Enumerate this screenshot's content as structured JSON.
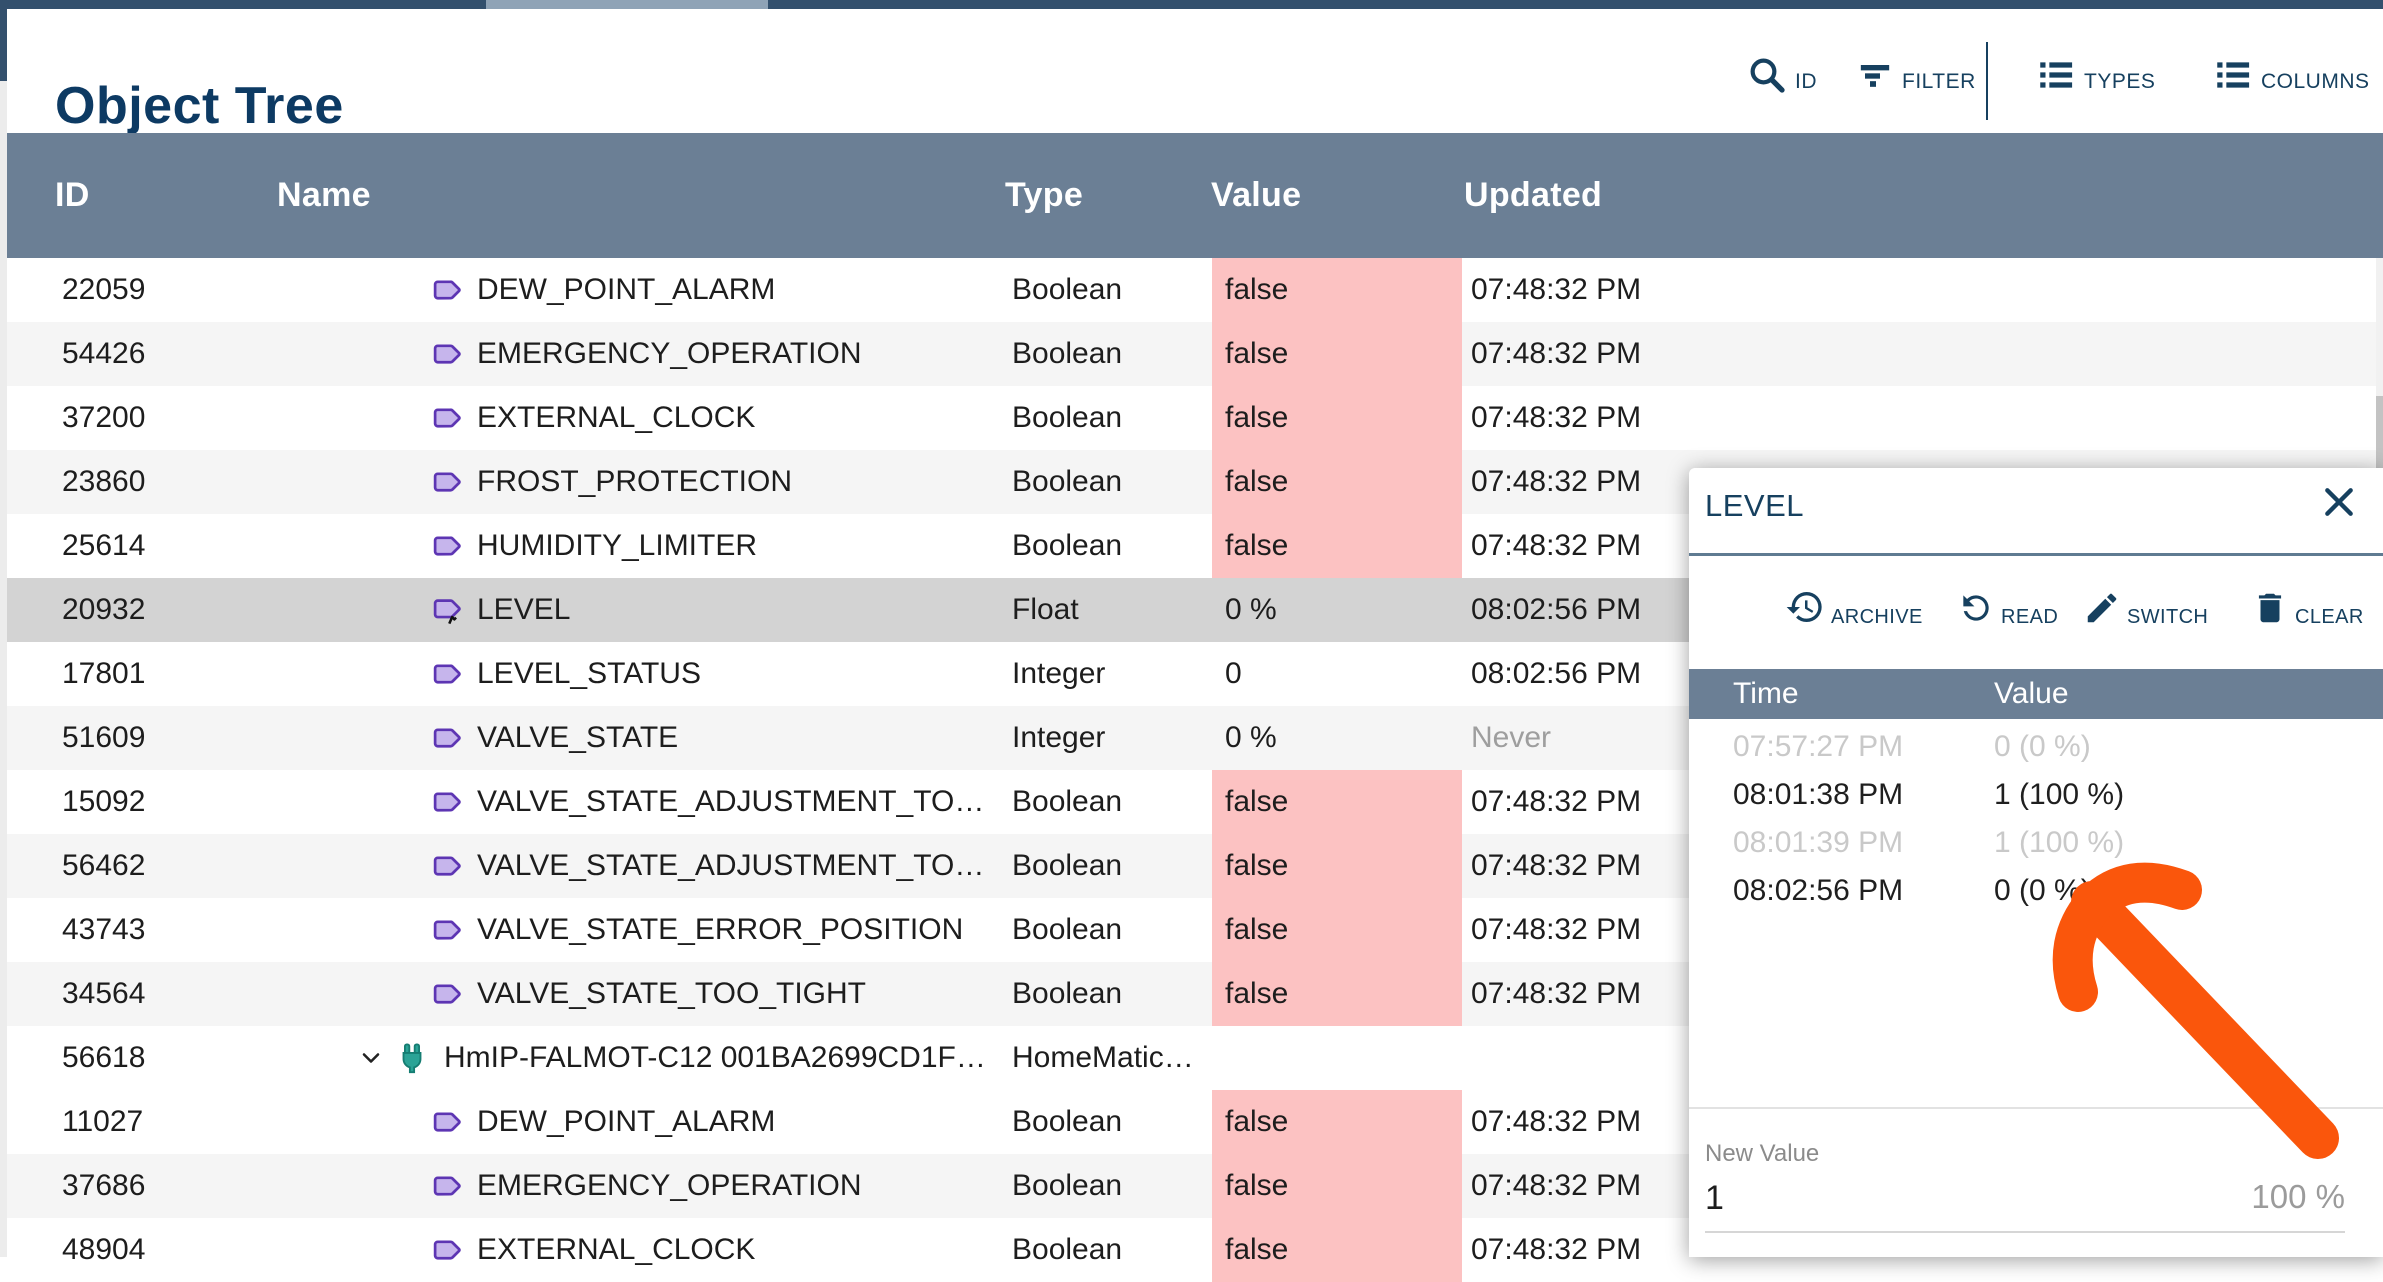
{
  "header": {
    "title": "Object Tree",
    "toolbar": [
      {
        "label": "ID",
        "icon": "search-icon"
      },
      {
        "label": "FILTER",
        "icon": "filter-icon"
      },
      {
        "label": "TYPES",
        "icon": "list-icon"
      },
      {
        "label": "COLUMNS",
        "icon": "list-icon"
      }
    ]
  },
  "table": {
    "columns": [
      "ID",
      "Name",
      "Type",
      "Value",
      "Updated"
    ],
    "rows": [
      {
        "id": "22059",
        "name": "DEW_POINT_ALARM",
        "type": "Boolean",
        "value": "false",
        "updated": "07:48:32 PM",
        "icon": "tag",
        "alarm": true,
        "shaded": false
      },
      {
        "id": "54426",
        "name": "EMERGENCY_OPERATION",
        "type": "Boolean",
        "value": "false",
        "updated": "07:48:32 PM",
        "icon": "tag",
        "alarm": true,
        "shaded": true
      },
      {
        "id": "37200",
        "name": "EXTERNAL_CLOCK",
        "type": "Boolean",
        "value": "false",
        "updated": "07:48:32 PM",
        "icon": "tag",
        "alarm": true,
        "shaded": false
      },
      {
        "id": "23860",
        "name": "FROST_PROTECTION",
        "type": "Boolean",
        "value": "false",
        "updated": "07:48:32 PM",
        "icon": "tag",
        "alarm": true,
        "shaded": true
      },
      {
        "id": "25614",
        "name": "HUMIDITY_LIMITER",
        "type": "Boolean",
        "value": "false",
        "updated": "07:48:32 PM",
        "icon": "tag",
        "alarm": true,
        "shaded": false
      },
      {
        "id": "20932",
        "name": "LEVEL",
        "type": "Float",
        "value": "0 %",
        "updated": "08:02:56 PM",
        "icon": "tag-edit",
        "alarm": false,
        "shaded": false,
        "selected": true
      },
      {
        "id": "17801",
        "name": "LEVEL_STATUS",
        "type": "Integer",
        "value": "0",
        "updated": "08:02:56 PM",
        "icon": "tag",
        "alarm": false,
        "shaded": false
      },
      {
        "id": "51609",
        "name": "VALVE_STATE",
        "type": "Integer",
        "value": "0 %",
        "updated": "Never",
        "icon": "tag",
        "alarm": false,
        "shaded": true,
        "never": true
      },
      {
        "id": "15092",
        "name": "VALVE_STATE_ADJUSTMENT_TO…",
        "type": "Boolean",
        "value": "false",
        "updated": "07:48:32 PM",
        "icon": "tag",
        "alarm": true,
        "shaded": false
      },
      {
        "id": "56462",
        "name": "VALVE_STATE_ADJUSTMENT_TO…",
        "type": "Boolean",
        "value": "false",
        "updated": "07:48:32 PM",
        "icon": "tag",
        "alarm": true,
        "shaded": true
      },
      {
        "id": "43743",
        "name": "VALVE_STATE_ERROR_POSITION",
        "type": "Boolean",
        "value": "false",
        "updated": "07:48:32 PM",
        "icon": "tag",
        "alarm": true,
        "shaded": false
      },
      {
        "id": "34564",
        "name": "VALVE_STATE_TOO_TIGHT",
        "type": "Boolean",
        "value": "false",
        "updated": "07:48:32 PM",
        "icon": "tag",
        "alarm": true,
        "shaded": true
      },
      {
        "id": "56618",
        "name": "HmIP-FALMOT-C12 001BA2699CD1F…",
        "type": "HomeMatic…",
        "value": "",
        "updated": "",
        "icon": "plug",
        "alarm": false,
        "shaded": false,
        "expandable": true
      },
      {
        "id": "11027",
        "name": "DEW_POINT_ALARM",
        "type": "Boolean",
        "value": "false",
        "updated": "07:48:32 PM",
        "icon": "tag",
        "alarm": true,
        "shaded": false
      },
      {
        "id": "37686",
        "name": "EMERGENCY_OPERATION",
        "type": "Boolean",
        "value": "false",
        "updated": "07:48:32 PM",
        "icon": "tag",
        "alarm": true,
        "shaded": true
      },
      {
        "id": "48904",
        "name": "EXTERNAL_CLOCK",
        "type": "Boolean",
        "value": "false",
        "updated": "07:48:32 PM",
        "icon": "tag",
        "alarm": true,
        "shaded": false
      }
    ]
  },
  "panel": {
    "title": "LEVEL",
    "close_icon": "close-icon",
    "actions": [
      {
        "label": "ARCHIVE",
        "icon": "history-icon"
      },
      {
        "label": "READ",
        "icon": "refresh-icon"
      },
      {
        "label": "SWITCH",
        "icon": "pencil-icon"
      },
      {
        "label": "CLEAR",
        "icon": "trash-icon"
      }
    ],
    "history": {
      "columns": [
        "Time",
        "Value"
      ],
      "rows": [
        {
          "time": "07:57:27 PM",
          "value": "0 (0 %)",
          "dimmed": true
        },
        {
          "time": "08:01:38 PM",
          "value": "1 (100 %)",
          "dimmed": false
        },
        {
          "time": "08:01:39 PM",
          "value": "1 (100 %)",
          "dimmed": true
        },
        {
          "time": "08:02:56 PM",
          "value": "0 (0 %)",
          "dimmed": false
        }
      ]
    },
    "new_value": {
      "label": "New Value",
      "value": "1",
      "suffix": "100 %"
    }
  },
  "colors": {
    "accent_navy": "#16405f",
    "header_slate": "#6b7f95",
    "alarm_pink": "#fcc2c2",
    "selected_row": "#d3d3d3",
    "alt_row": "#f5f5f5",
    "top_bar": "#33506d",
    "top_bar_segment": "#8fa3b6",
    "annotation_orange": "#fa560c",
    "tag_purple": "#5d35b3",
    "plug_teal": "#2ba396"
  }
}
